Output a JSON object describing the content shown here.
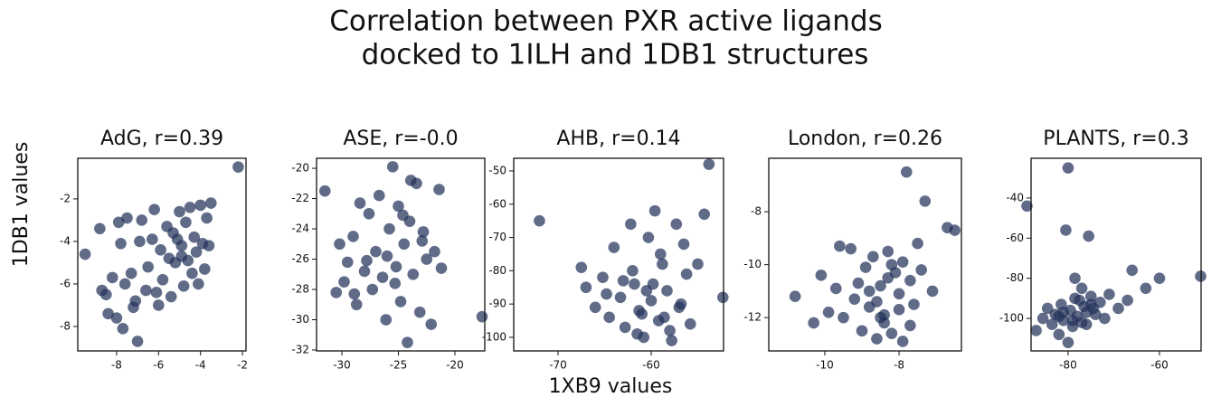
{
  "figure": {
    "title": [
      "Correlation between PXR active ligands",
      "docked to 1ILH and 1DB1 structures"
    ],
    "xlabel": "1XB9 values",
    "ylabel": "1DB1 values"
  },
  "chart_data": [
    {
      "type": "scatter",
      "title": "AdG, r=0.39",
      "color": "#22325a",
      "x": [
        -9.5,
        -8.8,
        -8.7,
        -8.5,
        -8.4,
        -8.2,
        -8.0,
        -7.9,
        -7.8,
        -7.7,
        -7.6,
        -7.5,
        -7.3,
        -7.2,
        -7.0,
        -6.9,
        -6.8,
        -6.6,
        -6.5,
        -6.3,
        -6.2,
        -6.0,
        -5.9,
        -5.8,
        -5.6,
        -5.5,
        -5.4,
        -5.3,
        -5.2,
        -5.0,
        -4.9,
        -4.8,
        -4.7,
        -4.6,
        -4.5,
        -4.4,
        -4.3,
        -4.2,
        -4.1,
        -4.0,
        -3.9,
        -3.8,
        -3.7,
        -3.6,
        -3.5,
        -2.2,
        -6.1,
        -5.1,
        -4.9,
        -7.1
      ],
      "y": [
        -4.6,
        -3.4,
        -6.3,
        -6.5,
        -7.4,
        -5.7,
        -7.6,
        -3.1,
        -4.1,
        -8.1,
        -6.0,
        -2.9,
        -5.5,
        -7.1,
        -8.7,
        -4.0,
        -3.0,
        -6.3,
        -5.2,
        -3.9,
        -2.5,
        -7.0,
        -4.4,
        -5.8,
        -3.3,
        -4.8,
        -6.6,
        -3.6,
        -5.0,
        -2.6,
        -4.2,
        -6.1,
        -3.1,
        -4.9,
        -2.4,
        -5.5,
        -3.8,
        -4.5,
        -6.0,
        -2.3,
        -4.1,
        -5.3,
        -2.9,
        -4.2,
        -2.2,
        -0.5,
        -6.4,
        -3.9,
        -4.7,
        -6.8
      ],
      "xlim": [
        -9.85,
        -1.83
      ],
      "ylim": [
        -9.15,
        -0.09
      ],
      "xticks": [
        -8,
        -6,
        -4,
        -2
      ],
      "yticks": [
        -8,
        -6,
        -4,
        -2
      ]
    },
    {
      "type": "scatter",
      "title": "ASE, r=-0.0",
      "color": "#22325a",
      "x": [
        -31.5,
        -30.5,
        -30.2,
        -29.8,
        -29.5,
        -29.0,
        -28.7,
        -28.4,
        -28.0,
        -27.6,
        -27.3,
        -27.0,
        -26.7,
        -26.4,
        -26.1,
        -25.8,
        -25.5,
        -25.2,
        -25.0,
        -24.8,
        -24.5,
        -24.2,
        -24.0,
        -23.7,
        -23.4,
        -23.1,
        -22.8,
        -22.5,
        -22.1,
        -21.8,
        -21.4,
        -21.2,
        -17.6,
        -26.0,
        -25.3,
        -24.6,
        -27.8,
        -23.9,
        -28.9,
        -22.9
      ],
      "y": [
        -21.5,
        -28.2,
        -25.0,
        -27.5,
        -26.2,
        -24.5,
        -29.0,
        -22.3,
        -26.8,
        -23.0,
        -28.0,
        -25.5,
        -21.8,
        -27.2,
        -30.0,
        -24.0,
        -19.9,
        -26.5,
        -22.5,
        -28.8,
        -25.0,
        -31.5,
        -23.5,
        -27.0,
        -21.0,
        -29.5,
        -24.2,
        -26.0,
        -30.3,
        -25.5,
        -21.4,
        -26.6,
        -29.8,
        -25.8,
        -27.6,
        -23.1,
        -26.1,
        -20.8,
        -28.3,
        -24.8
      ],
      "xlim": [
        -32.24,
        -17.36
      ],
      "ylim": [
        -32.06,
        -19.34
      ],
      "xticks": [
        -30,
        -25,
        -20
      ],
      "yticks": [
        -32,
        -30,
        -28,
        -26,
        -24,
        -22,
        -20
      ]
    },
    {
      "type": "scatter",
      "title": "AHB, r=0.14",
      "color": "#22325a",
      "x": [
        -72.0,
        -67.5,
        -67.0,
        -66.0,
        -65.2,
        -64.5,
        -64.0,
        -63.3,
        -62.8,
        -62.2,
        -61.8,
        -61.3,
        -60.8,
        -60.3,
        -60.0,
        -59.6,
        -59.2,
        -58.8,
        -58.3,
        -57.8,
        -57.3,
        -56.8,
        -56.2,
        -55.8,
        -55.0,
        -54.3,
        -53.8,
        -52.3,
        -63.0,
        -61.0,
        -59.0,
        -58.0,
        -60.5,
        -62.0,
        -57.0,
        -64.8,
        -56.5,
        -61.5,
        -59.8,
        -58.6
      ],
      "y": [
        -65.0,
        -79.0,
        -85.0,
        -91.0,
        -82.0,
        -94.0,
        -73.0,
        -88.0,
        -97.0,
        -66.0,
        -84.0,
        -92.0,
        -100.0,
        -70.0,
        -89.0,
        -62.0,
        -95.0,
        -78.0,
        -86.0,
        -101.0,
        -66.0,
        -90.0,
        -81.0,
        -96.0,
        -78.0,
        -63.0,
        -48.0,
        -88.0,
        -83.0,
        -93.0,
        -75.0,
        -98.0,
        -86.0,
        -80.0,
        -91.0,
        -87.0,
        -72.0,
        -99.0,
        -84.0,
        -94.0
      ],
      "xlim": [
        -74.76,
        -52.23
      ],
      "ylim": [
        -104.1,
        -46.2
      ],
      "xticks": [
        -70,
        -60
      ],
      "yticks": [
        -100,
        -90,
        -80,
        -70,
        -60,
        -50
      ]
    },
    {
      "type": "scatter",
      "title": "London, r=0.26",
      "color": "#22325a",
      "x": [
        -10.8,
        -10.3,
        -10.1,
        -9.9,
        -9.7,
        -9.5,
        -9.3,
        -9.2,
        -9.0,
        -8.9,
        -8.8,
        -8.7,
        -8.6,
        -8.5,
        -8.4,
        -8.3,
        -8.2,
        -8.1,
        -8.0,
        -7.9,
        -7.8,
        -7.7,
        -7.6,
        -7.5,
        -7.4,
        -7.3,
        -7.1,
        -6.7,
        -6.5,
        -8.6,
        -8.4,
        -8.2,
        -9.1,
        -8.0,
        -7.9,
        -7.7,
        -8.8,
        -9.6,
        -8.3,
        -8.5
      ],
      "y": [
        -11.2,
        -12.2,
        -10.4,
        -11.8,
        -10.9,
        -12.0,
        -9.4,
        -11.3,
        -12.5,
        -10.1,
        -11.6,
        -9.7,
        -12.8,
        -10.8,
        -11.9,
        -9.5,
        -12.6,
        -10.3,
        -11.1,
        -12.9,
        -6.5,
        -10.6,
        -11.5,
        -9.2,
        -10.2,
        -7.6,
        -11.0,
        -8.6,
        -8.7,
        -11.4,
        -12.2,
        -10.0,
        -10.7,
        -11.7,
        -9.9,
        -12.3,
        -11.0,
        -9.3,
        -10.5,
        -12.0
      ],
      "xlim": [
        -11.51,
        -6.32
      ],
      "ylim": [
        -13.26,
        -5.98
      ],
      "xticks": [
        -10,
        -8
      ],
      "yticks": [
        -12,
        -10,
        -8
      ]
    },
    {
      "type": "scatter",
      "title": "PLANTS, r=0.3",
      "color": "#22325a",
      "x": [
        -89.0,
        -87.0,
        -85.5,
        -84.5,
        -83.5,
        -82.8,
        -82.0,
        -81.5,
        -81.0,
        -80.5,
        -80.0,
        -79.5,
        -79.0,
        -78.5,
        -78.0,
        -77.5,
        -77.0,
        -76.5,
        -76.0,
        -75.5,
        -75.0,
        -74.0,
        -73.0,
        -72.0,
        -71.0,
        -69.0,
        -67.0,
        -66.0,
        -63.0,
        -60.0,
        -51.0,
        -80.0,
        -81.0,
        -76.0,
        -78.5,
        -82.0,
        -77.0,
        -74.5,
        -79.0,
        -75.0
      ],
      "y": [
        -44.0,
        -106.0,
        -100.0,
        -95.0,
        -103.0,
        -98.0,
        -108.0,
        -93.0,
        -101.0,
        -56.0,
        -25.0,
        -96.0,
        -104.0,
        -80.0,
        -99.0,
        -91.0,
        -102.0,
        -94.0,
        -97.0,
        -59.0,
        -89.0,
        -98.0,
        -92.0,
        -100.0,
        -88.0,
        -95.0,
        -91.0,
        -76.0,
        -85.0,
        -80.0,
        -79.0,
        -112.0,
        -97.0,
        -103.0,
        -90.0,
        -99.0,
        -85.0,
        -95.0,
        -101.0,
        -93.0
      ],
      "xlim": [
        -88.1,
        -50.9
      ],
      "ylim": [
        -116.2,
        -20.2
      ],
      "xticks": [
        -80,
        -60
      ],
      "yticks": [
        -100,
        -80,
        -60,
        -40
      ]
    }
  ]
}
